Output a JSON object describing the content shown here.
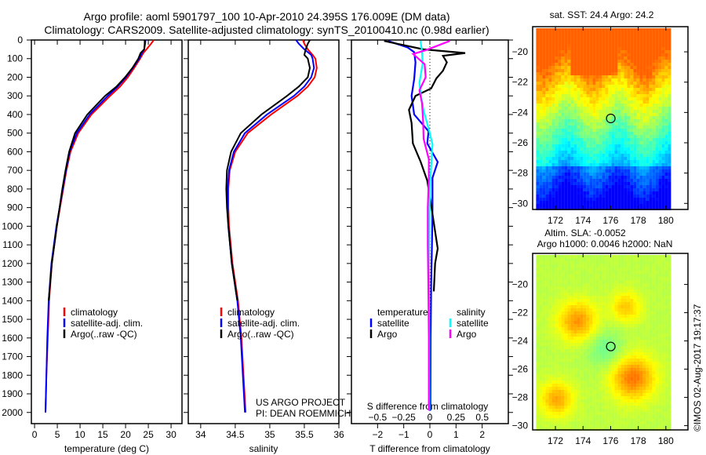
{
  "title_line1": "Argo profile: aoml 5901797_100 10-Apr-2010 24.395S 176.009E (DM data)",
  "title_line2": "Climatology: CARS2009. Satellite-adjusted climatology: synTS_20100410.nc (0.98d earlier)",
  "credit": "©IMOS 02-Aug-2017 19:17:37",
  "project_line1": "US ARGO PROJECT",
  "project_line2": "PI: DEAN ROEMMICH",
  "colors": {
    "climatology": "#ff0000",
    "satellite": "#0000ff",
    "argo": "#000000",
    "sal_satellite": "#00ffff",
    "sal_argo": "#ff00ff"
  },
  "chart_data": [
    {
      "type": "line",
      "name": "temperature",
      "xlabel": "temperature (deg C)",
      "ylabel": "depth",
      "xlim": [
        -0.7,
        32.4
      ],
      "ylim": [
        2060,
        0
      ],
      "xticks": [
        0,
        5,
        10,
        15,
        20,
        25,
        30
      ],
      "yticks": [
        0,
        100,
        200,
        300,
        400,
        500,
        600,
        700,
        800,
        900,
        1000,
        1100,
        1200,
        1300,
        1400,
        1500,
        1600,
        1700,
        1800,
        1900,
        2000
      ],
      "legend": [
        "climatology",
        "satellite-adj. clim.",
        "Argo(..raw -QC)"
      ],
      "depth": [
        0,
        20,
        50,
        70,
        100,
        150,
        200,
        250,
        300,
        400,
        500,
        600,
        700,
        800,
        900,
        1000,
        1200,
        1400,
        1600,
        1800,
        2000
      ],
      "series": [
        {
          "name": "climatology",
          "color": "#ff0000",
          "values": [
            26.2,
            25.6,
            24.6,
            23.9,
            23.2,
            21.9,
            20.5,
            18.8,
            16.6,
            12.5,
            9.6,
            7.9,
            7.0,
            6.3,
            5.6,
            4.9,
            3.8,
            3.2,
            2.9,
            2.6,
            2.4
          ]
        },
        {
          "name": "satellite-adj. clim.",
          "color": "#0000ff",
          "values": [
            24.4,
            24.3,
            24.1,
            23.6,
            23.0,
            21.6,
            20.1,
            18.3,
            16.1,
            12.1,
            9.3,
            7.7,
            6.9,
            6.2,
            5.5,
            4.8,
            3.7,
            3.1,
            2.8,
            2.6,
            2.4
          ]
        },
        {
          "name": "Argo(..raw -QC)",
          "color": "#000000",
          "values": [
            24.2,
            24.2,
            24.1,
            23.3,
            22.8,
            21.5,
            19.9,
            18.0,
            15.5,
            11.6,
            8.9,
            7.6,
            6.8,
            6.1,
            5.5,
            4.9,
            3.8,
            3.1
          ]
        }
      ]
    },
    {
      "type": "line",
      "name": "salinity",
      "xlabel": "salinity",
      "ylabel": "depth",
      "xlim": [
        33.82,
        36.0
      ],
      "ylim": [
        2060,
        0
      ],
      "xticks": [
        34,
        34.5,
        35,
        35.5,
        36
      ],
      "legend": [
        "climatology",
        "satellite-adj. clim.",
        "Argo(..raw -QC)"
      ],
      "depth": [
        0,
        20,
        50,
        80,
        100,
        150,
        200,
        250,
        300,
        400,
        500,
        600,
        700,
        800,
        900,
        1000,
        1200,
        1400,
        1600,
        1800,
        2000
      ],
      "series": [
        {
          "name": "climatology",
          "color": "#ff0000",
          "values": [
            35.48,
            35.5,
            35.55,
            35.62,
            35.66,
            35.68,
            35.65,
            35.55,
            35.4,
            35.02,
            34.68,
            34.5,
            34.42,
            34.4,
            34.4,
            34.41,
            34.46,
            34.54,
            34.59,
            34.62,
            34.65
          ]
        },
        {
          "name": "satellite-adj. clim.",
          "color": "#0000ff",
          "values": [
            35.38,
            35.42,
            35.5,
            35.6,
            35.62,
            35.64,
            35.6,
            35.5,
            35.35,
            34.96,
            34.64,
            34.48,
            34.41,
            34.39,
            34.39,
            34.4,
            34.45,
            34.53,
            34.58,
            34.61,
            34.64
          ]
        },
        {
          "name": "Argo(..raw -QC)",
          "color": "#000000",
          "values": [
            35.58,
            35.55,
            35.52,
            35.5,
            35.55,
            35.58,
            35.55,
            35.42,
            35.25,
            34.88,
            34.58,
            34.44,
            34.38,
            34.37,
            34.38,
            34.4,
            34.45,
            34.53
          ]
        }
      ]
    },
    {
      "type": "line",
      "name": "difference",
      "xlabel": "T difference from climatology",
      "x2label": "S difference from climatology",
      "xlim": [
        -3,
        3
      ],
      "ylim": [
        2060,
        0
      ],
      "xticks": [
        -2,
        -1,
        0,
        1,
        2
      ],
      "x2ticks": [
        -0.5,
        -0.25,
        0,
        0.25,
        0.5
      ],
      "legend_temperature_title": "temperature",
      "legend_salinity_title": "salinity",
      "legend": [
        "satellite",
        "Argo",
        "satellite",
        "Argo"
      ],
      "series": [
        {
          "name": "temperature satellite",
          "color": "#0000ff",
          "unit": "T",
          "depth": [
            5,
            40,
            65,
            120,
            210,
            300,
            400,
            490,
            555,
            655,
            740,
            900,
            1100,
            1300,
            1600,
            1990
          ],
          "values": [
            -1.6,
            -0.85,
            -0.6,
            -0.55,
            -0.6,
            -0.7,
            -0.6,
            -0.05,
            -0.1,
            0.3,
            0.1,
            0.1,
            0.08,
            0.05,
            0.03,
            0.02
          ]
        },
        {
          "name": "temperature Argo",
          "color": "#000000",
          "unit": "T",
          "depth": [
            5,
            50,
            70,
            85,
            120,
            165,
            206,
            260,
            300,
            375,
            445,
            555,
            655,
            755,
            935,
            1120,
            1200,
            1350
          ],
          "values": [
            -1.75,
            -0.25,
            1.35,
            0.5,
            0.65,
            0.5,
            0.25,
            0.05,
            -0.55,
            -0.8,
            -0.7,
            -0.65,
            -0.35,
            -0.1,
            0.1,
            0.3,
            0.2,
            0.15
          ]
        },
        {
          "name": "salinity satellite",
          "color": "#00ffff",
          "unit": "S",
          "depth": [
            5,
            60,
            130,
            230,
            300,
            380,
            480,
            560,
            650,
            800,
            1000,
            1300,
            1600,
            1990
          ],
          "values": [
            -0.09,
            -0.075,
            -0.07,
            -0.1,
            -0.085,
            -0.06,
            -0.01,
            0.025,
            0.015,
            0.0,
            -0.005,
            -0.01,
            -0.005,
            -0.005
          ]
        },
        {
          "name": "salinity Argo",
          "color": "#ff00ff",
          "unit": "S",
          "depth": [
            5,
            55,
            75,
            130,
            200,
            270,
            340,
            430,
            530,
            640,
            740,
            900,
            1100,
            1300,
            1600,
            1990
          ],
          "values": [
            0.19,
            -0.04,
            -0.16,
            -0.05,
            -0.04,
            -0.1,
            -0.075,
            -0.065,
            -0.06,
            -0.01,
            -0.01,
            -0.02,
            -0.02,
            -0.015,
            -0.01,
            -0.01
          ]
        }
      ]
    },
    {
      "type": "heatmap",
      "name": "sst-map",
      "title": "sat. SST: 24.4  Argo: 24.2",
      "xlim": [
        170.35,
        181.6
      ],
      "ylim": [
        -30.4,
        -18.34
      ],
      "xticks": [
        172,
        174,
        176,
        178,
        180
      ],
      "yticks": [
        -20,
        -22,
        -24,
        -26,
        -28,
        -30
      ],
      "marker": {
        "lon": 176.009,
        "lat": -24.395
      }
    },
    {
      "type": "heatmap",
      "name": "sla-map",
      "title_line1": "Altim. SLA: -0.0052",
      "title_line2": "Argo h1000: 0.0046  h2000: NaN",
      "xlim": [
        170.35,
        181.6
      ],
      "ylim": [
        -30.3,
        -17.8
      ],
      "xticks": [
        172,
        174,
        176,
        178,
        180
      ],
      "yticks": [
        -20,
        -22,
        -24,
        -26,
        -28,
        -30
      ],
      "marker": {
        "lon": 176.009,
        "lat": -24.395
      }
    }
  ]
}
